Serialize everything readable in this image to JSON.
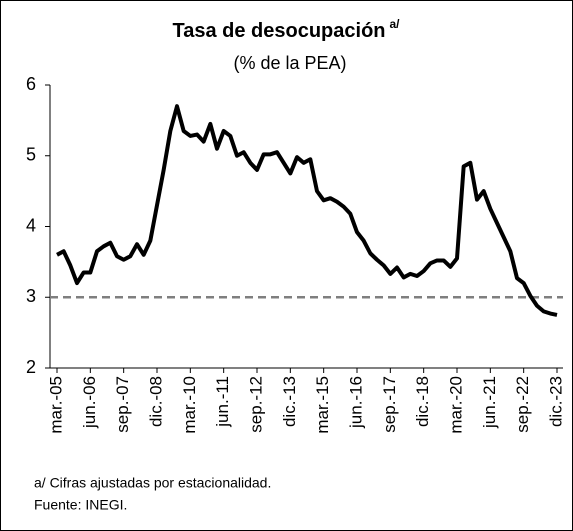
{
  "chart_data": {
    "type": "line",
    "title": "Tasa de desocupación",
    "title_superscript": "a/",
    "subtitle": "(% de la PEA)",
    "notes": [
      "a/ Cifras ajustadas por estacionalidad.",
      "Fuente: INEGI."
    ],
    "categories": [
      "mar.-05",
      null,
      null,
      null,
      null,
      "jun.-06",
      null,
      null,
      null,
      null,
      "sep.-07",
      null,
      null,
      null,
      null,
      "dic.-08",
      null,
      null,
      null,
      null,
      "mar.-10",
      null,
      null,
      null,
      null,
      "jun.-11",
      null,
      null,
      null,
      null,
      "sep.-12",
      null,
      null,
      null,
      null,
      "dic.-13",
      null,
      null,
      null,
      null,
      "mar.-15",
      null,
      null,
      null,
      null,
      "jun.-16",
      null,
      null,
      null,
      null,
      "sep.-17",
      null,
      null,
      null,
      null,
      "dic.-18",
      null,
      null,
      null,
      null,
      "mar.-20",
      null,
      null,
      null,
      null,
      "jun.-21",
      null,
      null,
      null,
      null,
      "sep.-22",
      null,
      null,
      null,
      null,
      "dic.-23"
    ],
    "values": [
      3.6,
      3.65,
      3.45,
      3.2,
      3.35,
      3.35,
      3.65,
      3.72,
      3.77,
      3.58,
      3.53,
      3.58,
      3.75,
      3.6,
      3.8,
      4.3,
      4.8,
      5.35,
      5.7,
      5.35,
      5.28,
      5.3,
      5.2,
      5.45,
      5.1,
      5.35,
      5.28,
      5.0,
      5.05,
      4.9,
      4.8,
      5.02,
      5.02,
      5.05,
      4.9,
      4.75,
      4.98,
      4.9,
      4.95,
      4.5,
      4.37,
      4.4,
      4.35,
      4.28,
      4.18,
      3.92,
      3.8,
      3.62,
      3.53,
      3.45,
      3.33,
      3.42,
      3.28,
      3.33,
      3.3,
      3.37,
      3.48,
      3.52,
      3.52,
      3.43,
      3.55,
      4.85,
      4.9,
      4.38,
      4.5,
      4.25,
      4.05,
      3.85,
      3.65,
      3.27,
      3.2,
      3.02,
      2.88,
      2.8,
      2.77,
      2.75
    ],
    "color": "#000000",
    "reference_line": 3,
    "reference_color": "#7f7f7f",
    "ylim": [
      2,
      6
    ],
    "yticks": [
      2,
      3,
      4,
      5,
      6
    ],
    "grid": false
  }
}
